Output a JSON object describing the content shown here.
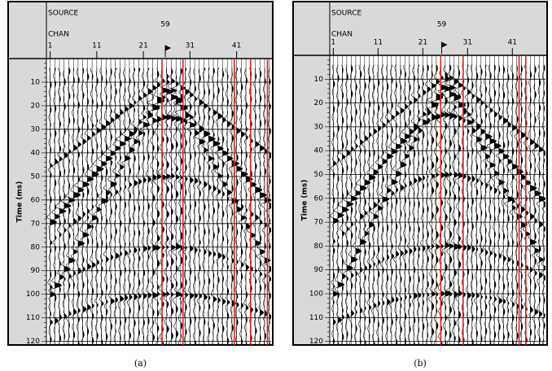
{
  "panels": [
    {
      "source_label": "SOURCE",
      "chan_label": "CHAN",
      "source_value": 59,
      "xlim": [
        0.2,
        48.4
      ],
      "ylim": [
        0,
        121.5
      ],
      "chan_ticks": [
        1,
        11,
        21,
        31,
        41
      ],
      "time_ticks": [
        10,
        20,
        30,
        40,
        50,
        60,
        70,
        80,
        90,
        100,
        110,
        120
      ],
      "y_label": "Time (ms)",
      "red_lines": [
        25,
        29.5,
        40.5,
        44,
        47.6
      ],
      "caption": "(a)"
    },
    {
      "source_label": "SOURCE",
      "chan_label": "CHAN",
      "source_value": 59,
      "xlim": [
        0.2,
        48.4
      ],
      "ylim": [
        0,
        121.5
      ],
      "chan_ticks": [
        1,
        11,
        21,
        31,
        41
      ],
      "time_ticks": [
        10,
        20,
        30,
        40,
        50,
        60,
        70,
        80,
        90,
        100,
        110,
        120
      ],
      "y_label": "Time (ms)",
      "red_lines": [
        25,
        30,
        42.5,
        44
      ],
      "caption": "(b)"
    }
  ]
}
